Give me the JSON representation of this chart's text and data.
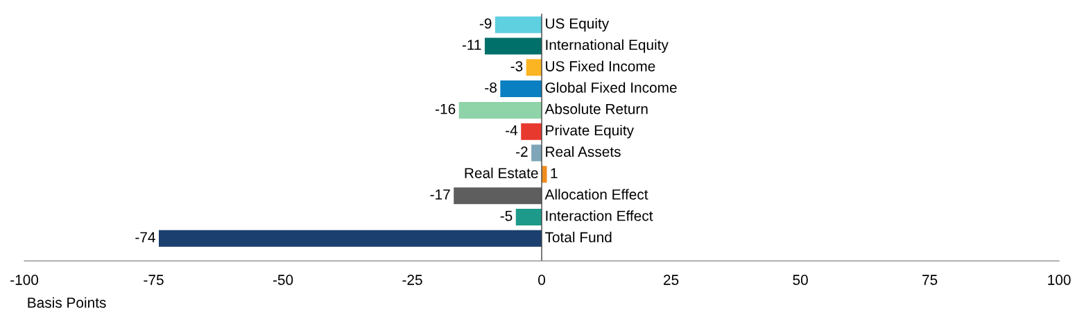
{
  "chart_data": {
    "type": "bar",
    "orientation": "horizontal",
    "xlabel": "Basis Points",
    "categories": [
      "US Equity",
      "International Equity",
      "US Fixed Income",
      "Global Fixed Income",
      "Absolute Return",
      "Private Equity",
      "Real Assets",
      "Real Estate",
      "Allocation Effect",
      "Interaction Effect",
      "Total Fund"
    ],
    "values": [
      -9,
      -11,
      -3,
      -8,
      -16,
      -4,
      -2,
      1,
      -17,
      -5,
      -74
    ],
    "colors": [
      "#5fd0df",
      "#00706a",
      "#fbb522",
      "#0a7fc1",
      "#8fd4a8",
      "#e8392e",
      "#7fa6b8",
      "#f08c1e",
      "#5e5e5e",
      "#1e9a8a",
      "#1b3f6e"
    ],
    "xlim": [
      -100,
      100
    ],
    "xticks": [
      -100,
      -75,
      -50,
      -25,
      0,
      25,
      50,
      75,
      100
    ],
    "data_labels": true,
    "grid": false,
    "legend": false
  }
}
